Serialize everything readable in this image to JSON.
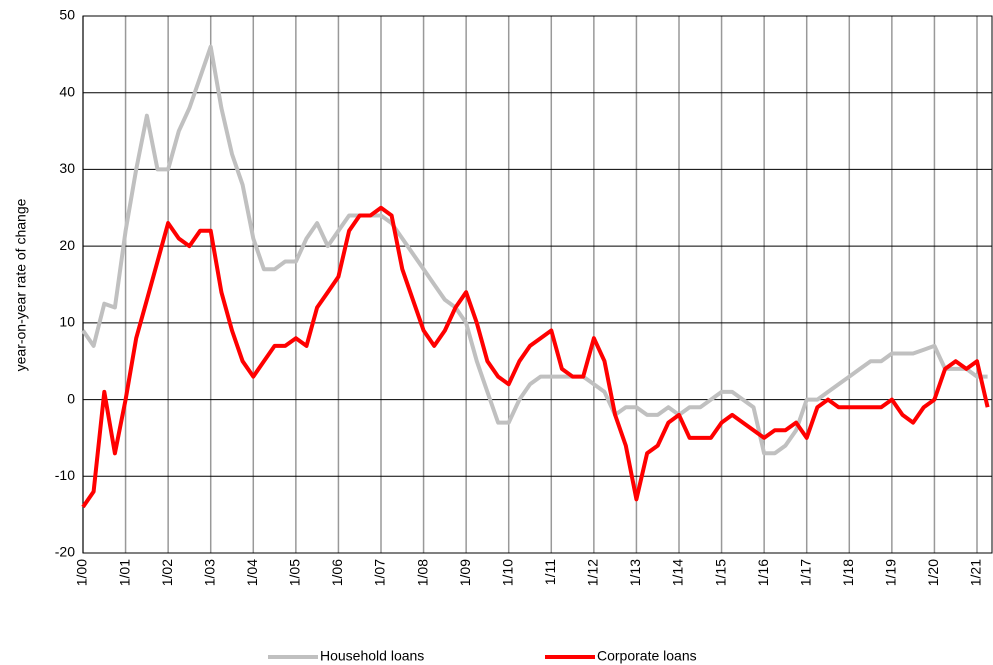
{
  "chart_data": {
    "type": "line",
    "y_label": "year-on-year rate of change",
    "categories": [
      "1/00",
      null,
      null,
      null,
      "1/01",
      null,
      null,
      null,
      "1/02",
      null,
      null,
      null,
      "1/03",
      null,
      null,
      null,
      "1/04",
      null,
      null,
      null,
      "1/05",
      null,
      null,
      null,
      "1/06",
      null,
      null,
      null,
      "1/07",
      null,
      null,
      null,
      "1/08",
      null,
      null,
      null,
      "1/09",
      null,
      null,
      null,
      "1/10",
      null,
      null,
      null,
      "1/11",
      null,
      null,
      null,
      "1/12",
      null,
      null,
      null,
      "1/13",
      null,
      null,
      null,
      "1/14",
      null,
      null,
      null,
      "1/15",
      null,
      null,
      null,
      "1/16",
      null,
      null,
      null,
      "1/17",
      null,
      null,
      null,
      "1/18",
      null,
      null,
      null,
      "1/19",
      null,
      null,
      null,
      "1/20",
      null,
      null,
      null,
      "1/21",
      null
    ],
    "series": [
      {
        "name": "Household loans",
        "color": "#c0c0c0",
        "values": [
          9,
          7,
          12.5,
          12,
          22,
          30,
          37,
          30,
          30,
          35,
          38,
          42,
          46,
          38,
          32,
          28,
          21,
          17,
          17,
          18,
          18,
          21,
          23,
          20,
          22,
          24,
          24,
          24,
          24,
          23,
          21,
          19,
          17,
          15,
          13,
          12,
          10,
          5,
          1,
          -3,
          -3,
          0,
          2,
          3,
          3,
          3,
          3,
          3,
          2,
          1,
          -2,
          -1,
          -1,
          -2,
          -2,
          -1,
          -2,
          -1,
          -1,
          0,
          1,
          1,
          0,
          -1,
          -7,
          -7,
          -6,
          -4,
          0,
          0,
          1,
          2,
          3,
          4,
          5,
          5,
          6,
          6,
          6,
          6.5,
          7,
          4,
          4,
          4,
          3,
          3
        ]
      },
      {
        "name": "Corporate loans",
        "color": "#ff0000",
        "values": [
          -14,
          -12,
          1,
          -7,
          0,
          8,
          13,
          18,
          23,
          21,
          20,
          22,
          22,
          14,
          9,
          5,
          3,
          5,
          7,
          7,
          8,
          7,
          12,
          14,
          16,
          22,
          24,
          24,
          25,
          24,
          17,
          13,
          9,
          7,
          9,
          12,
          14,
          10,
          5,
          3,
          2,
          5,
          7,
          8,
          9,
          4,
          3,
          3,
          8,
          5,
          -2,
          -6,
          -13,
          -7,
          -6,
          -3,
          -2,
          -5,
          -5,
          -5,
          -3,
          -2,
          -3,
          -4,
          -5,
          -4,
          -4,
          -3,
          -5,
          -1,
          0,
          -1,
          -1,
          -1,
          -1,
          -1,
          0,
          -2,
          -3,
          -1,
          0,
          4,
          5,
          4,
          5,
          -1
        ]
      }
    ],
    "ylim": [
      -20,
      50
    ],
    "yticks": [
      -20,
      -10,
      0,
      10,
      20,
      30,
      40,
      50
    ],
    "grid": true,
    "legend": "bottom"
  }
}
